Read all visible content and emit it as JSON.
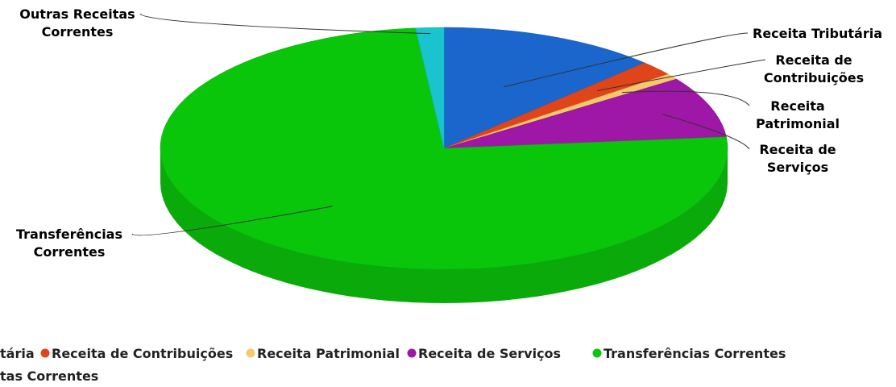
{
  "chart_data": {
    "type": "pie",
    "style": "3d",
    "categories": [
      "Receita Tributária",
      "Receita de Contribuições",
      "Receita Patrimonial",
      "Receita de Serviços",
      "Transferências Correntes",
      "Outras Receitas Correntes"
    ],
    "values": [
      12.5,
      2.0,
      0.8,
      8.2,
      74.9,
      1.6
    ],
    "colors": [
      "#1a66cc",
      "#e0441a",
      "#f5c96b",
      "#9e17a6",
      "#0ac60a",
      "#19c4cf"
    ],
    "slice_labels": [
      [
        "Receita Tributária"
      ],
      [
        "Receita de",
        "Contribuições"
      ],
      [
        "Receita",
        "Patrimonial"
      ],
      [
        "Receita de",
        "Serviços"
      ],
      [
        "Transferências",
        "Correntes"
      ],
      [
        "Outras Receitas",
        "Correntes"
      ]
    ],
    "legend": {
      "position": "bottom",
      "rows": [
        [
          "Receita Tributária",
          "Receita de Contribuições",
          "Receita Patrimonial",
          "Receita de Serviços",
          "Transferências Correntes"
        ],
        [
          "Outras Receitas Correntes"
        ]
      ],
      "row_text": [
        "tária",
        "tas Correntes"
      ]
    }
  }
}
